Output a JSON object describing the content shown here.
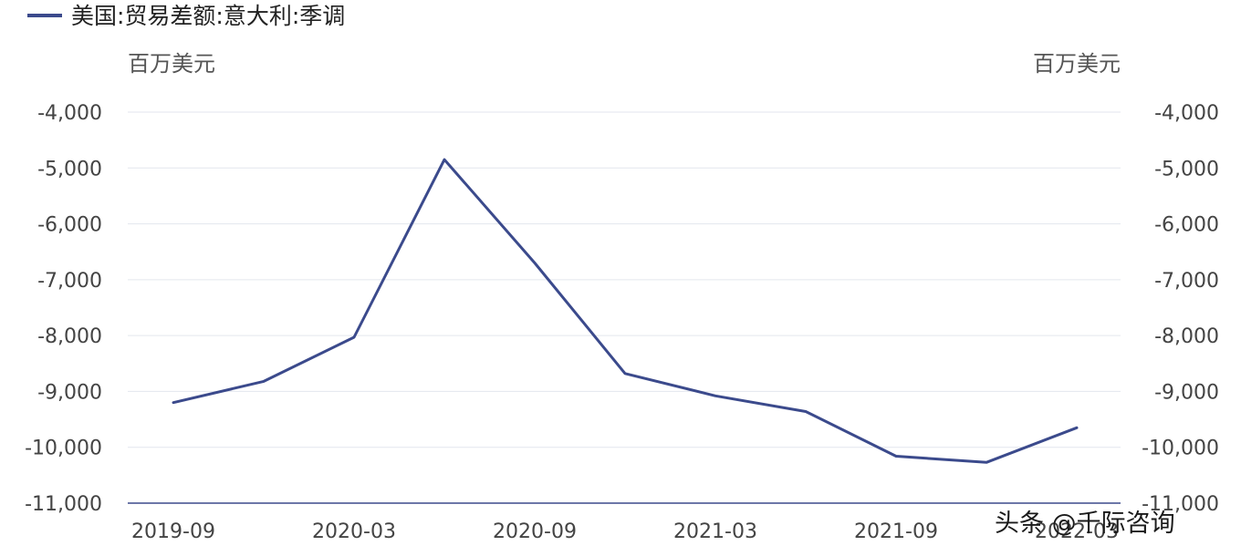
{
  "legend": {
    "label": "美国:贸易差额:意大利:季调",
    "color": "#3b4a8c"
  },
  "axes": {
    "left_unit": "百万美元",
    "right_unit": "百万美元"
  },
  "watermark": {
    "text": "头条 @千际咨询"
  },
  "chart_data": {
    "type": "line",
    "title": "",
    "xlabel": "",
    "ylabel": "百万美元",
    "ylim": [
      -11000,
      -4000
    ],
    "yticks": [
      -4000,
      -5000,
      -6000,
      -7000,
      -8000,
      -9000,
      -10000,
      -11000
    ],
    "ytick_labels": [
      "-4,000",
      "-5,000",
      "-6,000",
      "-7,000",
      "-8,000",
      "-9,000",
      "-10,000",
      "-11,000"
    ],
    "x": [
      "2019-09",
      "2019-12",
      "2020-03",
      "2020-06",
      "2020-09",
      "2020-12",
      "2021-03",
      "2021-06",
      "2021-09",
      "2021-12",
      "2022-03"
    ],
    "xtick_labels": [
      "2019-09",
      "2020-03",
      "2020-09",
      "2021-03",
      "2021-09",
      "2022-03"
    ],
    "grid": true,
    "legend_position": "top-left",
    "series": [
      {
        "name": "美国:贸易差额:意大利:季调",
        "color": "#3b4a8c",
        "values": [
          -9200,
          -8820,
          -8030,
          -4850,
          -6700,
          -8680,
          -9080,
          -9360,
          -10160,
          -10270,
          -9650
        ]
      }
    ]
  }
}
